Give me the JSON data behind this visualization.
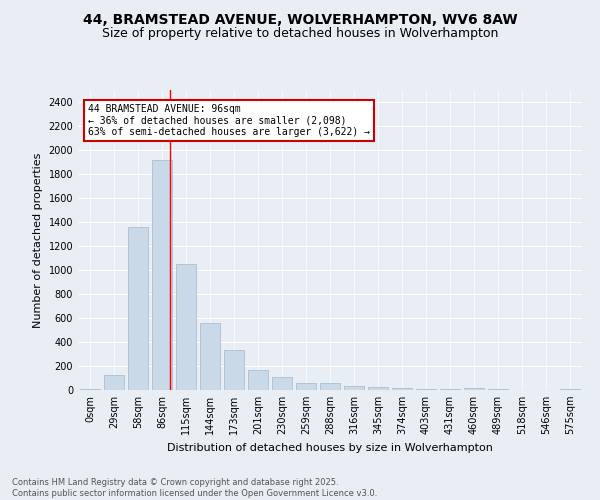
{
  "title": "44, BRAMSTEAD AVENUE, WOLVERHAMPTON, WV6 8AW",
  "subtitle": "Size of property relative to detached houses in Wolverhampton",
  "xlabel": "Distribution of detached houses by size in Wolverhampton",
  "ylabel": "Number of detached properties",
  "categories": [
    "0sqm",
    "29sqm",
    "58sqm",
    "86sqm",
    "115sqm",
    "144sqm",
    "173sqm",
    "201sqm",
    "230sqm",
    "259sqm",
    "288sqm",
    "316sqm",
    "345sqm",
    "374sqm",
    "403sqm",
    "431sqm",
    "460sqm",
    "489sqm",
    "518sqm",
    "546sqm",
    "575sqm"
  ],
  "values": [
    10,
    125,
    1360,
    1920,
    1050,
    555,
    335,
    170,
    105,
    60,
    55,
    30,
    25,
    20,
    10,
    5,
    15,
    5,
    2,
    2,
    10
  ],
  "bar_color": "#c9d9e8",
  "bar_edgecolor": "#a0b8cc",
  "red_line_x": 3.35,
  "annotation_text": "44 BRAMSTEAD AVENUE: 96sqm\n← 36% of detached houses are smaller (2,098)\n63% of semi-detached houses are larger (3,622) →",
  "annotation_box_color": "#ffffff",
  "annotation_box_edgecolor": "#cc0000",
  "ylim": [
    0,
    2500
  ],
  "yticks": [
    0,
    200,
    400,
    600,
    800,
    1000,
    1200,
    1400,
    1600,
    1800,
    2000,
    2200,
    2400
  ],
  "footer_text": "Contains HM Land Registry data © Crown copyright and database right 2025.\nContains public sector information licensed under the Open Government Licence v3.0.",
  "bg_color": "#e8eef4",
  "plot_bg_color": "#e8eef4",
  "grid_color": "#ffffff",
  "title_fontsize": 10,
  "subtitle_fontsize": 9,
  "axis_label_fontsize": 8,
  "tick_fontsize": 7,
  "annotation_fontsize": 7,
  "footer_fontsize": 6
}
